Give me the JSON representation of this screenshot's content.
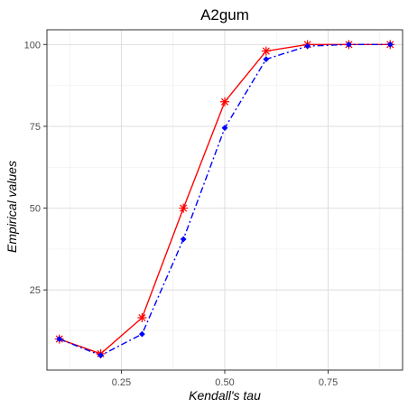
{
  "chart_data": {
    "type": "line",
    "title": "A2gum",
    "xlabel": "Kendall's tau",
    "ylabel": "Empirical values",
    "xlim": [
      0.07,
      0.93
    ],
    "ylim": [
      0.5,
      104.5
    ],
    "x_ticks": [
      0.25,
      0.5,
      0.75
    ],
    "x_tick_labels": [
      "0.25",
      "0.50",
      "0.75"
    ],
    "y_ticks": [
      25,
      50,
      75,
      100
    ],
    "y_tick_labels": [
      "25",
      "50",
      "75",
      "100"
    ],
    "grid": true,
    "x": [
      0.1,
      0.2,
      0.3,
      0.4,
      0.5,
      0.6,
      0.7,
      0.8,
      0.9
    ],
    "series": [
      {
        "color": "#ff0000",
        "line_style": "solid",
        "marker": "asterisk",
        "values": [
          10,
          5.5,
          16.5,
          50,
          82.5,
          98,
          100,
          100,
          100
        ]
      },
      {
        "color": "#0000ff",
        "line_style": "dashdot",
        "marker": "diamond",
        "values": [
          10,
          5,
          11.5,
          40.5,
          74.5,
          95.5,
          99.5,
          100,
          100
        ]
      }
    ]
  }
}
